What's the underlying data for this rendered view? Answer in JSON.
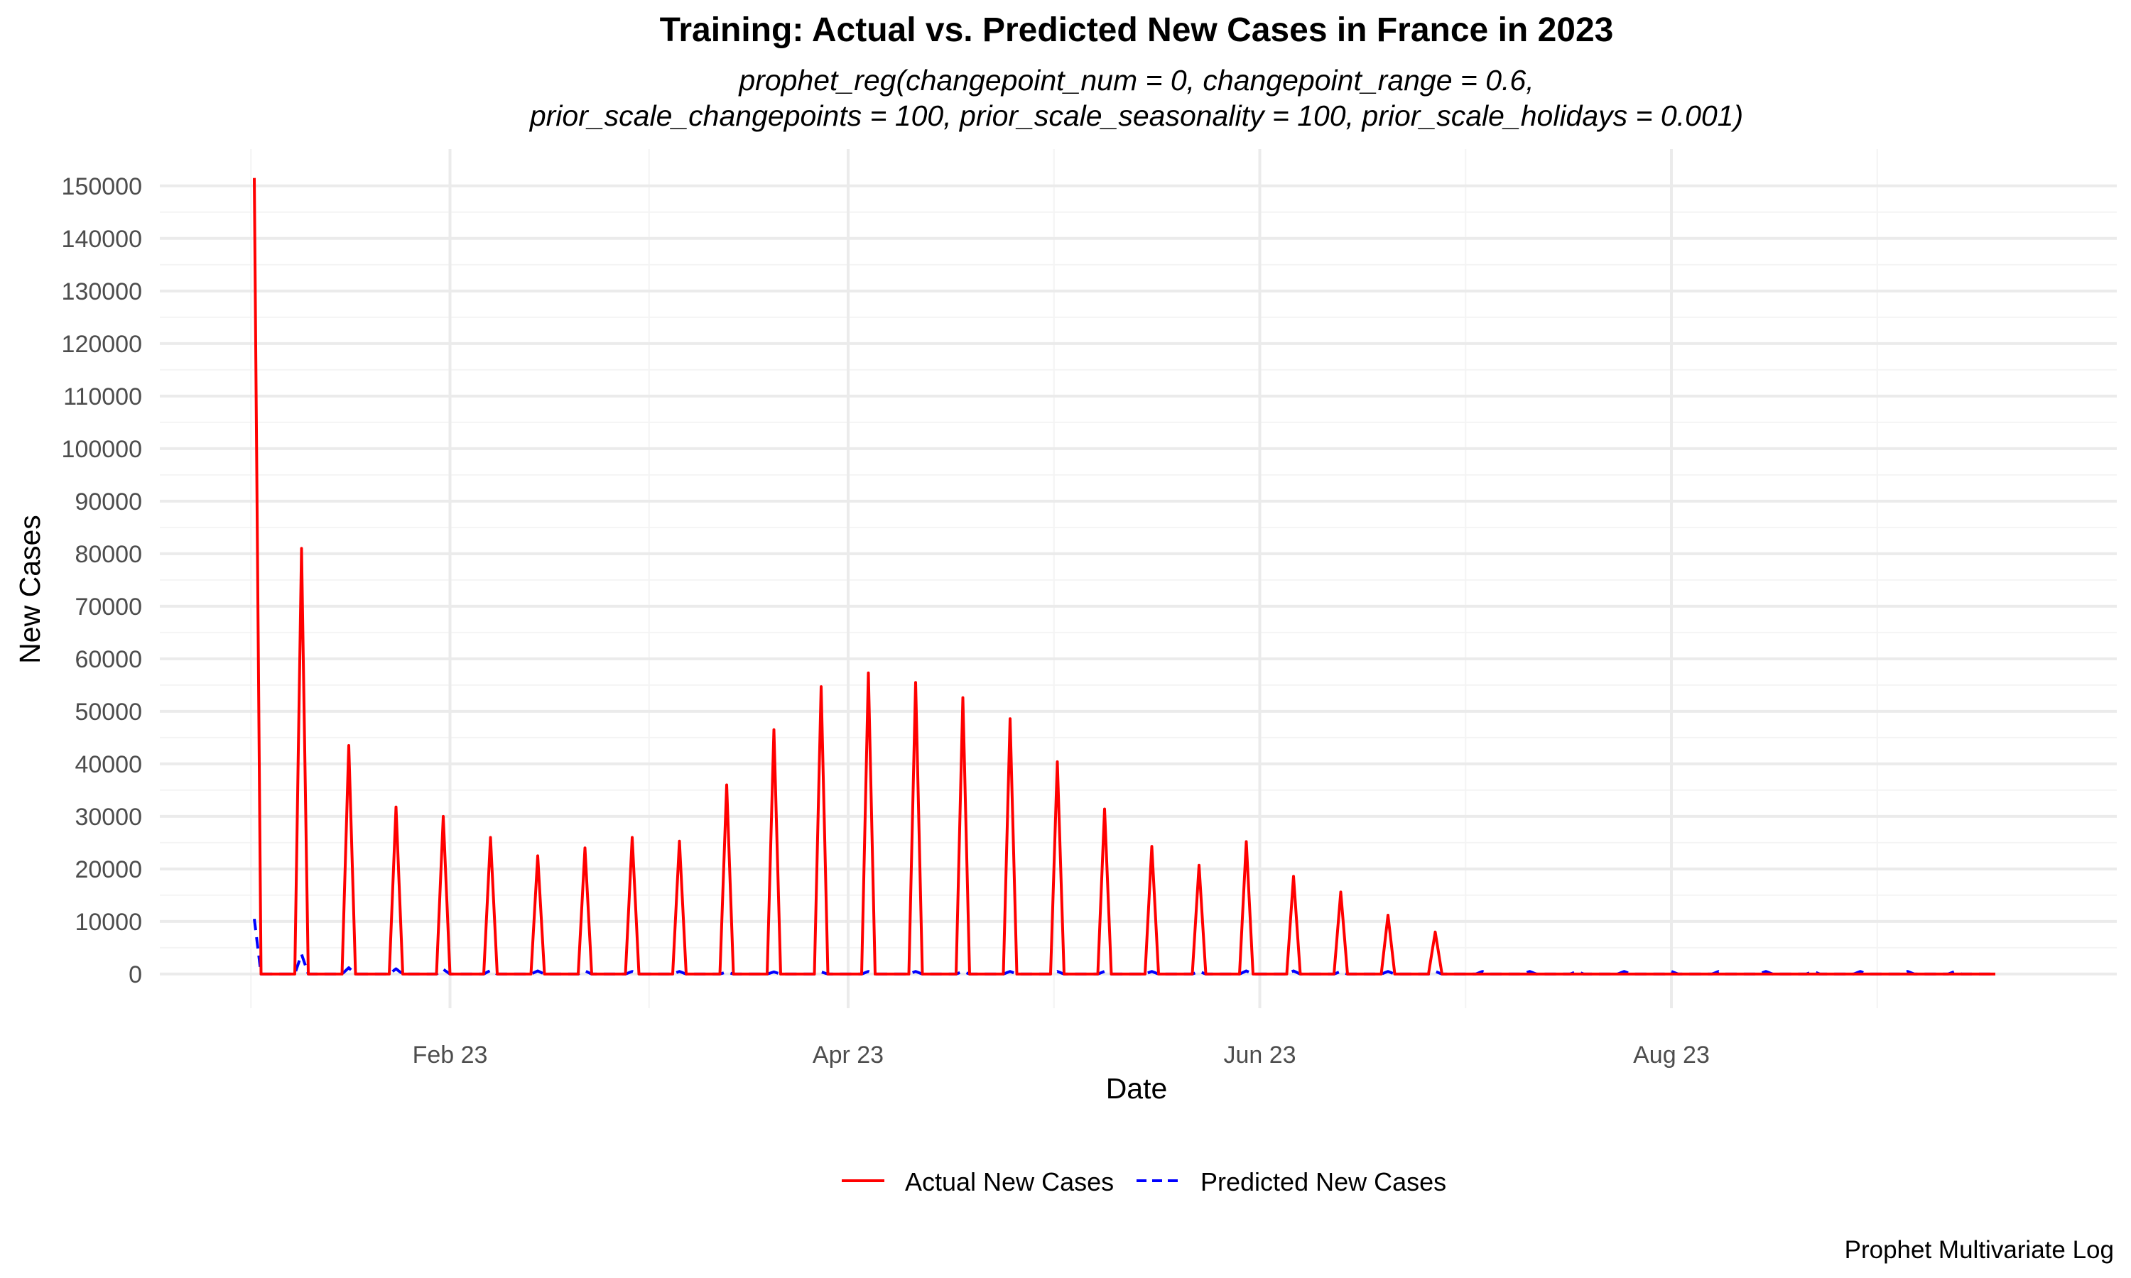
{
  "chart_data": {
    "type": "line",
    "title": "Training: Actual vs. Predicted New Cases in France in 2023",
    "subtitle_lines": [
      "prophet_reg(changepoint_num = 0, changepoint_range = 0.6,",
      "prior_scale_changepoints = 100, prior_scale_seasonality = 100, prior_scale_holidays = 0.001)"
    ],
    "xlabel": "Date",
    "ylabel": "New Cases",
    "caption": "Prophet Multivariate Log",
    "x_ticks": [
      {
        "date": "2023-02-01",
        "label": "Feb 23"
      },
      {
        "date": "2023-04-01",
        "label": "Apr 23"
      },
      {
        "date": "2023-06-01",
        "label": "Jun 23"
      },
      {
        "date": "2023-08-01",
        "label": "Aug 23"
      }
    ],
    "y_ticks": [
      0,
      10000,
      20000,
      30000,
      40000,
      50000,
      60000,
      70000,
      80000,
      90000,
      100000,
      110000,
      120000,
      130000,
      140000,
      150000
    ],
    "xlim": [
      "2022-12-20",
      "2023-10-06"
    ],
    "ylim": [
      -6500,
      157000
    ],
    "grid": true,
    "legend_position": "bottom",
    "series": [
      {
        "name": "Actual New Cases",
        "color": "#ff0000",
        "dash": "solid",
        "weekly_peaks": [
          {
            "date": "2023-01-03",
            "value": 151500
          },
          {
            "date": "2023-01-10",
            "value": 81000
          },
          {
            "date": "2023-01-17",
            "value": 43500
          },
          {
            "date": "2023-01-24",
            "value": 31800
          },
          {
            "date": "2023-01-31",
            "value": 30000
          },
          {
            "date": "2023-02-07",
            "value": 26000
          },
          {
            "date": "2023-02-14",
            "value": 22500
          },
          {
            "date": "2023-02-21",
            "value": 24000
          },
          {
            "date": "2023-02-28",
            "value": 26000
          },
          {
            "date": "2023-03-07",
            "value": 25300
          },
          {
            "date": "2023-03-14",
            "value": 36000
          },
          {
            "date": "2023-03-21",
            "value": 46500
          },
          {
            "date": "2023-03-28",
            "value": 54700
          },
          {
            "date": "2023-04-04",
            "value": 57300
          },
          {
            "date": "2023-04-11",
            "value": 55500
          },
          {
            "date": "2023-04-18",
            "value": 52600
          },
          {
            "date": "2023-04-25",
            "value": 48600
          },
          {
            "date": "2023-05-02",
            "value": 40400
          },
          {
            "date": "2023-05-09",
            "value": 31400
          },
          {
            "date": "2023-05-16",
            "value": 24300
          },
          {
            "date": "2023-05-23",
            "value": 20700
          },
          {
            "date": "2023-05-30",
            "value": 25200
          },
          {
            "date": "2023-06-06",
            "value": 18600
          },
          {
            "date": "2023-06-13",
            "value": 15600
          },
          {
            "date": "2023-06-20",
            "value": 11200
          },
          {
            "date": "2023-06-27",
            "value": 8000
          }
        ],
        "baseline_value": 0,
        "end_date": "2023-09-18"
      },
      {
        "name": "Predicted New Cases",
        "color": "#0000ff",
        "dash": "dashed",
        "weekly_peaks": [
          {
            "date": "2023-01-03",
            "value": 10500
          },
          {
            "date": "2023-01-10",
            "value": 3800
          },
          {
            "date": "2023-01-17",
            "value": 1200
          },
          {
            "date": "2023-01-24",
            "value": 1000
          },
          {
            "date": "2023-01-31",
            "value": 900
          },
          {
            "date": "2023-02-07",
            "value": 700
          },
          {
            "date": "2023-02-14",
            "value": 600
          },
          {
            "date": "2023-02-21",
            "value": 600
          },
          {
            "date": "2023-02-28",
            "value": 500
          },
          {
            "date": "2023-03-07",
            "value": 500
          },
          {
            "date": "2023-03-14",
            "value": 400
          },
          {
            "date": "2023-03-21",
            "value": 400
          },
          {
            "date": "2023-03-28",
            "value": 400
          },
          {
            "date": "2023-04-04",
            "value": 500
          },
          {
            "date": "2023-04-11",
            "value": 500
          },
          {
            "date": "2023-04-18",
            "value": 500
          },
          {
            "date": "2023-04-25",
            "value": 500
          },
          {
            "date": "2023-05-02",
            "value": 500
          },
          {
            "date": "2023-05-09",
            "value": 500
          },
          {
            "date": "2023-05-16",
            "value": 500
          },
          {
            "date": "2023-05-23",
            "value": 500
          },
          {
            "date": "2023-05-30",
            "value": 600
          },
          {
            "date": "2023-06-06",
            "value": 600
          },
          {
            "date": "2023-06-13",
            "value": 500
          },
          {
            "date": "2023-06-20",
            "value": 500
          },
          {
            "date": "2023-06-27",
            "value": 500
          },
          {
            "date": "2023-07-04",
            "value": 500
          },
          {
            "date": "2023-07-11",
            "value": 500
          },
          {
            "date": "2023-07-18",
            "value": 500
          },
          {
            "date": "2023-07-25",
            "value": 500
          },
          {
            "date": "2023-08-01",
            "value": 500
          },
          {
            "date": "2023-08-08",
            "value": 500
          },
          {
            "date": "2023-08-15",
            "value": 500
          },
          {
            "date": "2023-08-22",
            "value": 500
          },
          {
            "date": "2023-08-29",
            "value": 500
          },
          {
            "date": "2023-09-05",
            "value": 500
          },
          {
            "date": "2023-09-12",
            "value": 500
          }
        ],
        "baseline_value": 0,
        "end_date": "2023-09-18"
      }
    ]
  }
}
